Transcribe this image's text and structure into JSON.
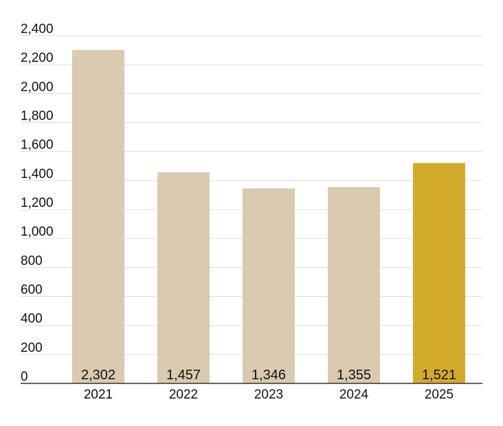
{
  "chart_data": {
    "type": "bar",
    "categories": [
      "2021",
      "2022",
      "2023",
      "2024",
      "2025"
    ],
    "values": [
      2302,
      1457,
      1346,
      1355,
      1521
    ],
    "value_labels": [
      "2,302",
      "1,457",
      "1,346",
      "1,355",
      "1,521"
    ],
    "y_ticks": [
      0,
      200,
      400,
      600,
      800,
      1000,
      1200,
      1400,
      1600,
      1800,
      2000,
      2200,
      2400
    ],
    "y_tick_labels": [
      "0",
      "200",
      "400",
      "600",
      "800",
      "1,000",
      "1,200",
      "1,400",
      "1,600",
      "1,800",
      "2,000",
      "2,200",
      "2,400"
    ],
    "ylim": [
      0,
      2400
    ],
    "grid": true,
    "title": "",
    "xlabel": "",
    "ylabel": "",
    "colors": {
      "bar": "#d9cab0",
      "highlight_bar": "#d4aa2a",
      "gridline": "#dddddd",
      "axis": "#333333",
      "text": "#111111"
    },
    "highlight_category": "2025"
  }
}
